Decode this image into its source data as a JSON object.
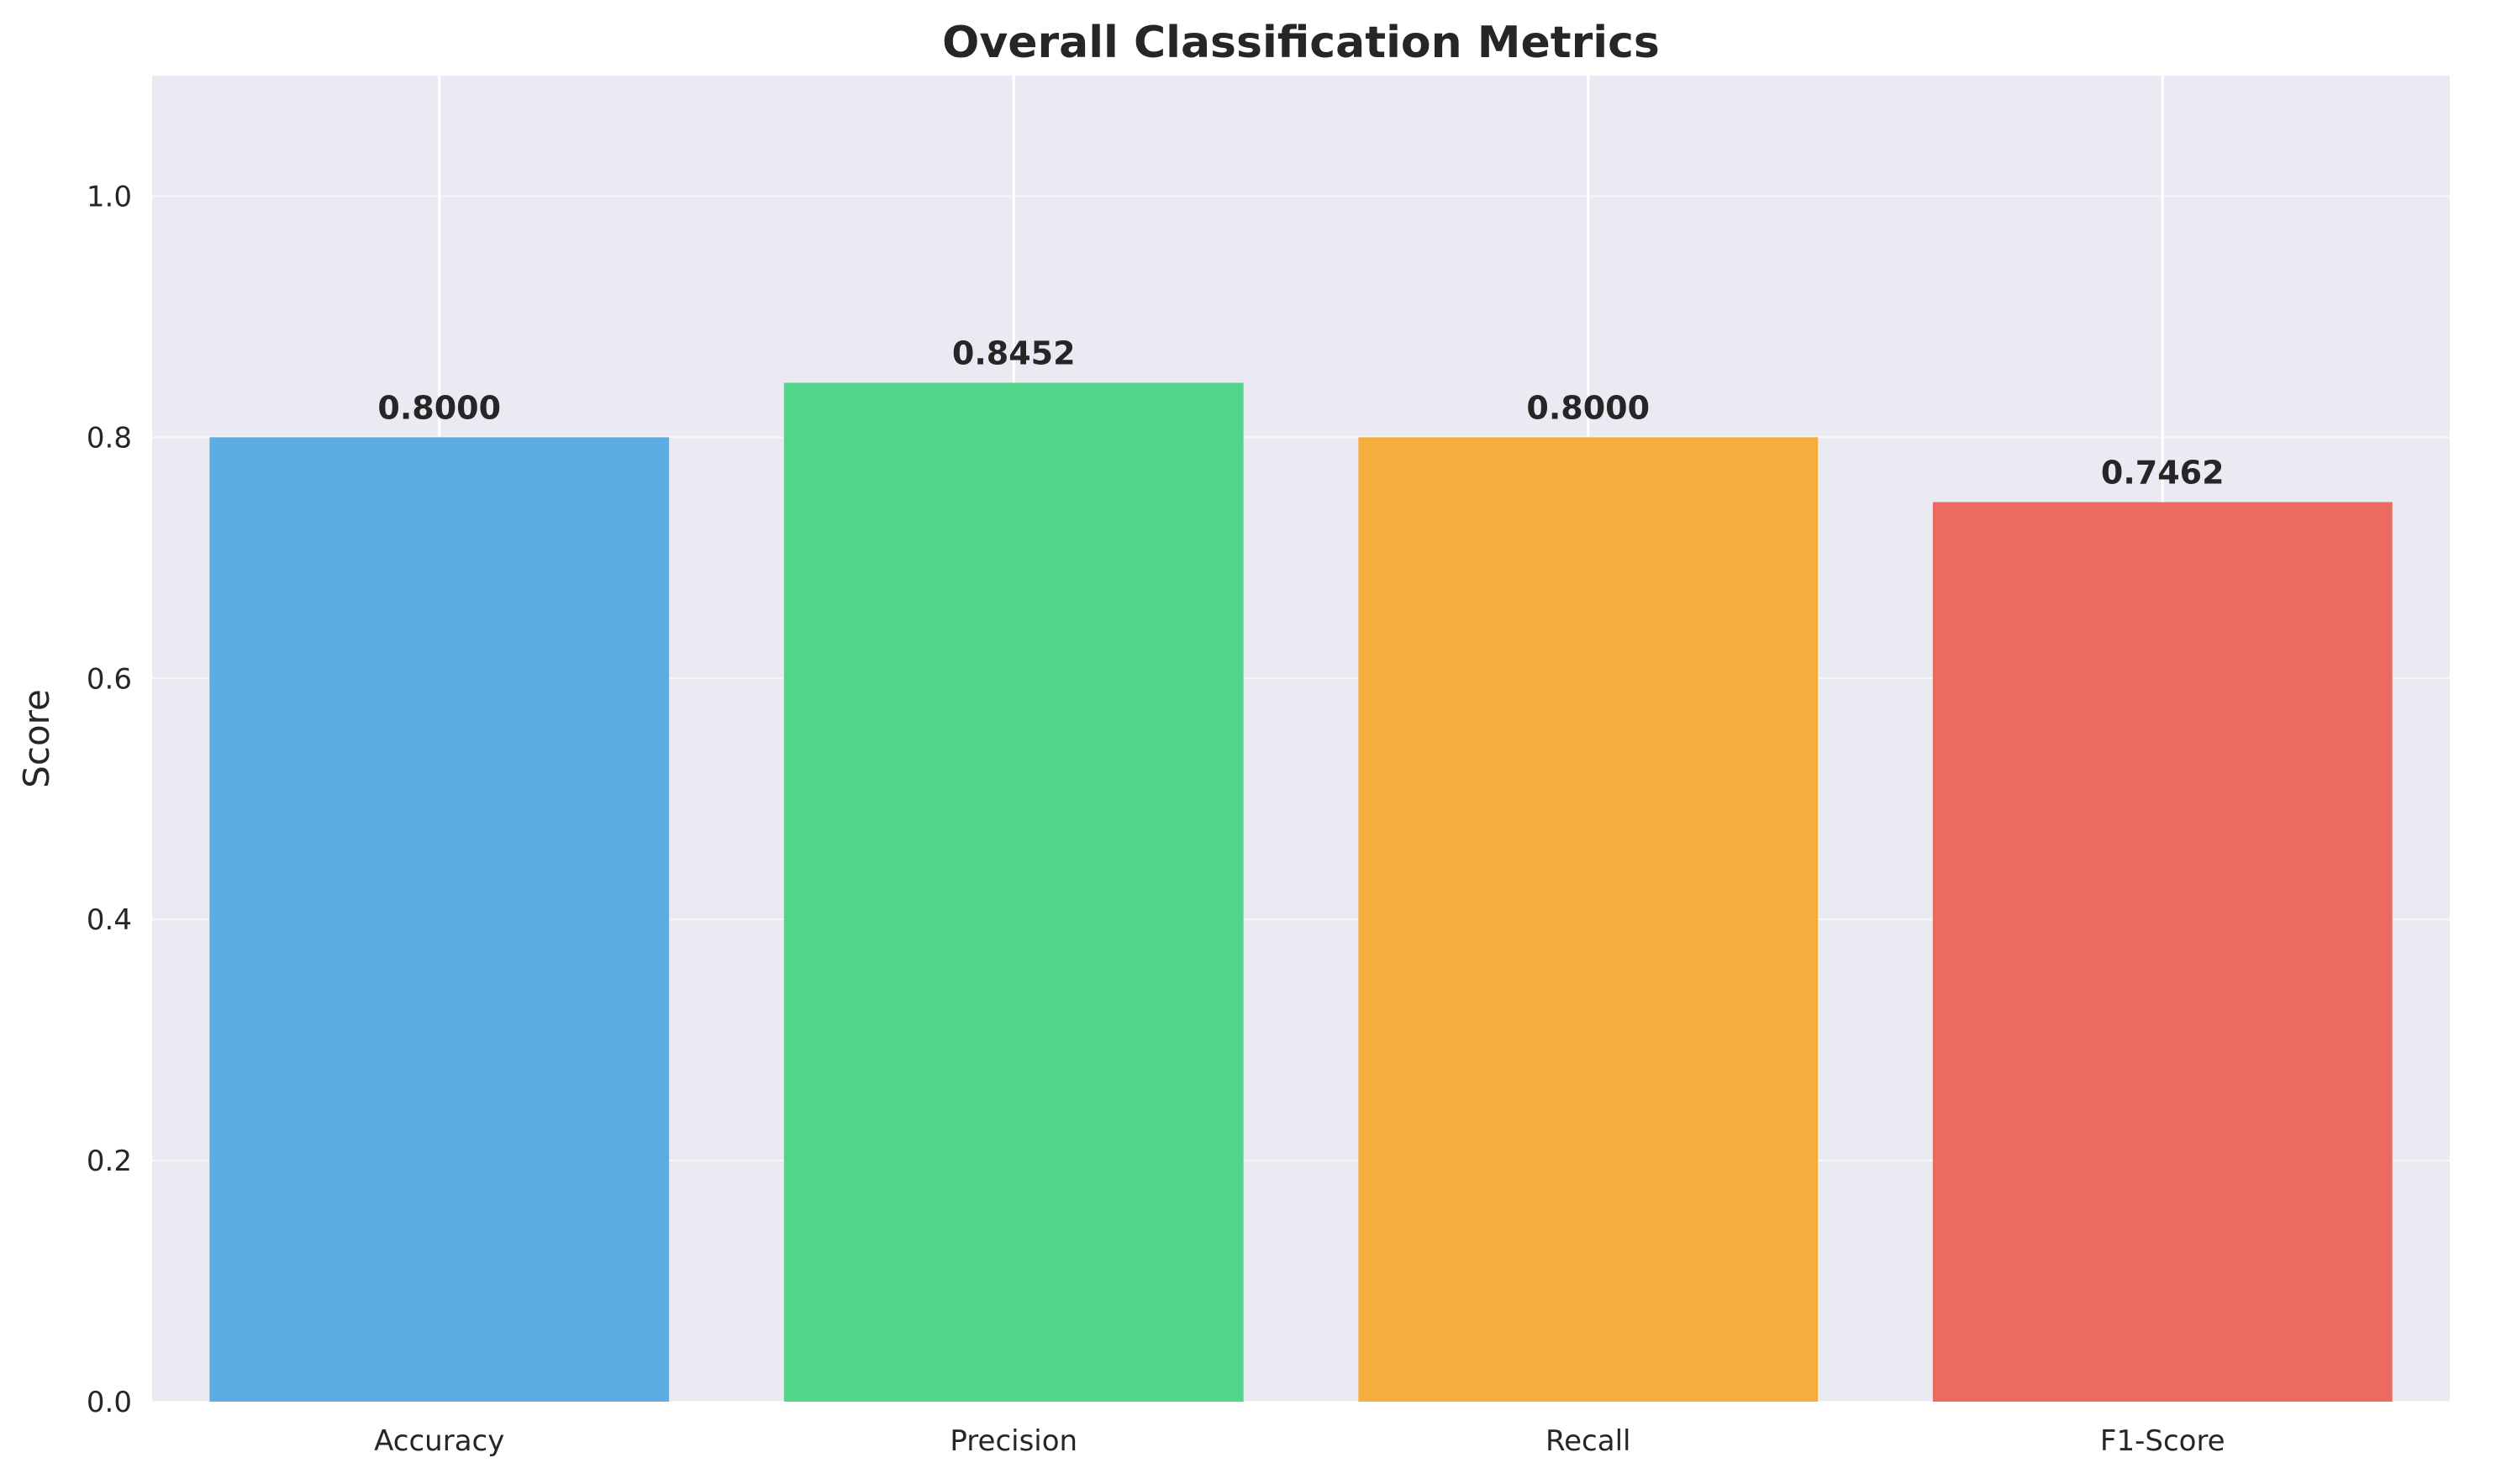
{
  "chart_data": {
    "type": "bar",
    "title": "Overall Classification Metrics",
    "xlabel": "",
    "ylabel": "Score",
    "categories": [
      "Accuracy",
      "Precision",
      "Recall",
      "F1-Score"
    ],
    "values": [
      0.8,
      0.8452,
      0.8,
      0.7462
    ],
    "value_labels": [
      "0.8000",
      "0.8452",
      "0.8000",
      "0.7462"
    ],
    "colors": [
      "#5DADE2",
      "#52D68A",
      "#F5AD3D",
      "#EC6B60"
    ],
    "ylim": [
      0,
      1.1
    ],
    "yticks": [
      0.0,
      0.2,
      0.4,
      0.6,
      0.8,
      1.0
    ],
    "ytick_labels": [
      "0.0",
      "0.2",
      "0.4",
      "0.6",
      "0.8",
      "1.0"
    ],
    "grid": true,
    "background_color": "#EAEAF2"
  }
}
